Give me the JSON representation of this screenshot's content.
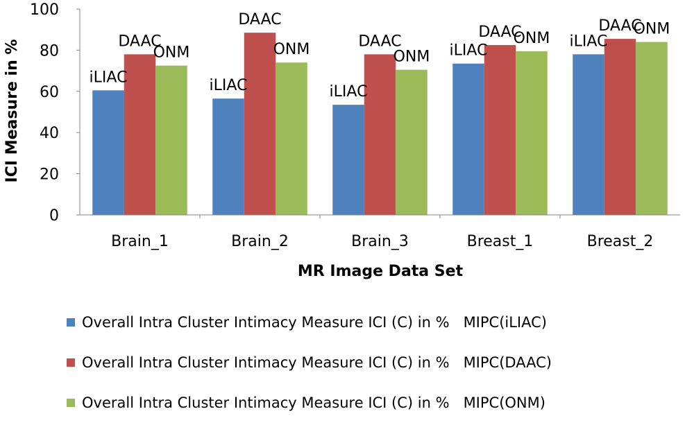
{
  "chart_data": {
    "type": "bar",
    "title": "",
    "xlabel": "MR Image Data Set",
    "ylabel": "ICI Measure in %",
    "ylim": [
      0,
      100
    ],
    "yticks": [
      "0",
      "20",
      "40",
      "60",
      "80",
      "100"
    ],
    "categories": [
      "Brain_1",
      "Brain_2",
      "Brain_3",
      "Breast_1",
      "Breast_2"
    ],
    "series": [
      {
        "name": "Overall Intra Cluster Intimacy Measure ICI (C) in %   MIPC(iLIAC)",
        "label": "iLIAC",
        "color": "#4F81BD",
        "values": [
          60.5,
          56.5,
          53.5,
          73.5,
          78
        ]
      },
      {
        "name": "Overall Intra Cluster Intimacy Measure ICI (C) in %   MIPC(DAAC)",
        "label": "DAAC",
        "color": "#C0504D",
        "values": [
          78,
          88.5,
          78,
          82.5,
          85.5
        ]
      },
      {
        "name": "Overall Intra Cluster Intimacy Measure ICI (C) in %   MIPC(ONM)",
        "label": "ONM",
        "color": "#9BBB59",
        "values": [
          72.5,
          74,
          70.5,
          79.5,
          84
        ]
      }
    ],
    "legend_position": "bottom"
  }
}
